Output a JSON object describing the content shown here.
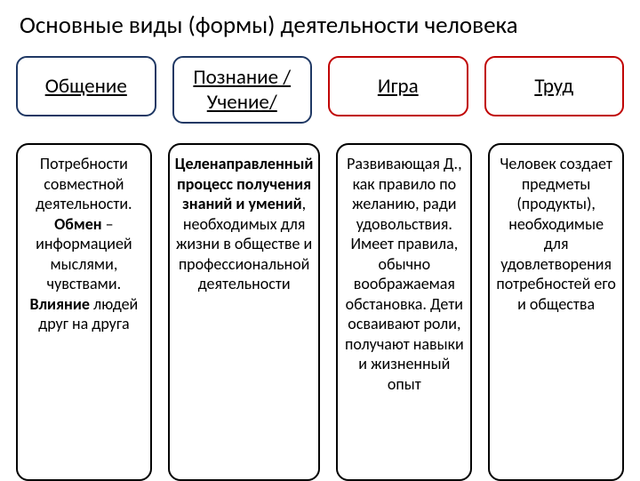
{
  "title": "Основные виды (формы) деятельности человека",
  "style": {
    "background_color": "#ffffff",
    "title_fontsize": 27,
    "head_fontsize": 23,
    "desc_fontsize": 18,
    "border_radius": 12,
    "border_width": 2,
    "gap": 18
  },
  "columns": [
    {
      "head": {
        "label": "Общение",
        "border_color": "#1f3864"
      },
      "desc": {
        "plain1": "Потребности совместной деятельности.",
        "bold1": "Обмен",
        "sep1": " – ",
        "plain2": "информацией мыслями, чувствами.",
        "bold2": "Влияние",
        "plain3": "людей друг на друга"
      }
    },
    {
      "head": {
        "label": "Познание / Учение/",
        "border_color": "#1f3864"
      },
      "desc": {
        "bold1": "Целенаправленный процесс получения знаний и умений",
        "plain1": ", необходимых для жизни в обществе и профессиональной деятельности"
      }
    },
    {
      "head": {
        "label": "Игра",
        "border_color": "#c00000"
      },
      "desc": {
        "plain1": "Развивающая Д., как правило по желанию, ради удовольствия. Имеет правила, обычно воображаемая обстановка. Дети осваивают роли, получают навыки и жизненный опыт"
      }
    },
    {
      "head": {
        "label": "Труд",
        "border_color": "#c00000"
      },
      "desc": {
        "plain1": "Человек создает предметы (продукты), необходимые для удовлетворения потребностей его и общества"
      }
    }
  ]
}
